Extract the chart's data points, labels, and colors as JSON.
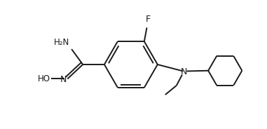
{
  "bg_color": "#ffffff",
  "line_color": "#1a1a1a",
  "line_width": 1.4,
  "font_size": 8.5,
  "figsize": [
    3.81,
    1.84
  ],
  "dpi": 100,
  "xlim": [
    -2.0,
    2.8
  ],
  "ylim": [
    -1.3,
    1.2
  ]
}
